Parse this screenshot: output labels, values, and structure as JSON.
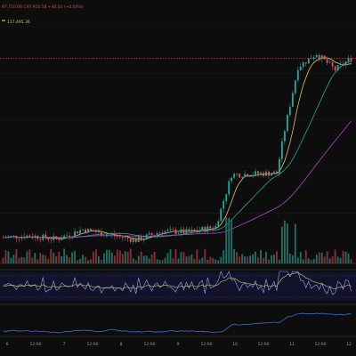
{
  "header": {
    "ohlc_text": "97,710.08 C97,910.58  +40.03 (+0.04%)",
    "ma_label": "117,495.36"
  },
  "colors": {
    "background": "#0d0d0d",
    "up": "#26a69a",
    "down": "#ef5350",
    "ma_fast": "#d9c56a",
    "ma_mid": "#26a69a",
    "ma_slow": "#b43fd0",
    "price_line": "#e14a4a",
    "vol_up": "#1f6f67",
    "vol_down": "#8a2f30",
    "rsi_line": "#9aa3ff",
    "rsi_signal": "#d9c56a",
    "obv_line": "#3a6fd8"
  },
  "time_axis": {
    "labels": [
      "6",
      "12:00",
      "7",
      "12:00",
      "8",
      "12:00",
      "9",
      "12:00",
      "10",
      "12:00",
      "11",
      "12:00",
      "12"
    ]
  },
  "chart_data": {
    "type": "candlestick",
    "title": "",
    "x_start": 0,
    "candle_count": 132,
    "seed": 7,
    "anchors": [
      {
        "i": 0,
        "p": 97500
      },
      {
        "i": 10,
        "p": 97700
      },
      {
        "i": 20,
        "p": 97300
      },
      {
        "i": 30,
        "p": 98400
      },
      {
        "i": 40,
        "p": 97800
      },
      {
        "i": 50,
        "p": 97200
      },
      {
        "i": 60,
        "p": 98200
      },
      {
        "i": 70,
        "p": 98100
      },
      {
        "i": 80,
        "p": 98700
      },
      {
        "i": 86,
        "p": 104500
      },
      {
        "i": 95,
        "p": 104600
      },
      {
        "i": 103,
        "p": 104700
      },
      {
        "i": 106,
        "p": 109500
      },
      {
        "i": 111,
        "p": 116500
      },
      {
        "i": 118,
        "p": 118000
      },
      {
        "i": 125,
        "p": 116200
      },
      {
        "i": 131,
        "p": 117500
      }
    ],
    "ylim": [
      95000,
      121000
    ],
    "price_line_value": 117495.36
  }
}
